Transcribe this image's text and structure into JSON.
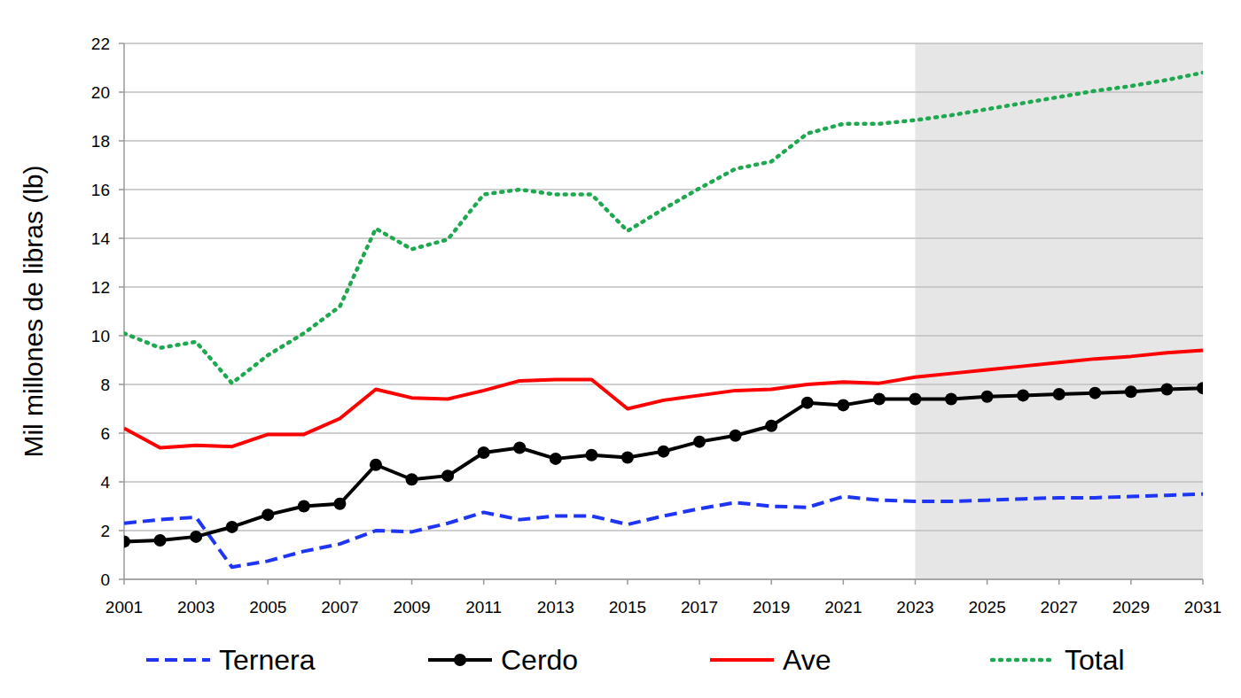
{
  "chart_data": {
    "type": "line",
    "y_label": "Mil millones de libras (lb)",
    "x": [
      2001,
      2002,
      2003,
      2004,
      2005,
      2006,
      2007,
      2008,
      2009,
      2010,
      2011,
      2012,
      2013,
      2014,
      2015,
      2016,
      2017,
      2018,
      2019,
      2020,
      2021,
      2022,
      2023,
      2024,
      2025,
      2026,
      2027,
      2028,
      2029,
      2030,
      2031
    ],
    "xlim": [
      2001,
      2031
    ],
    "xticks": [
      2001,
      2003,
      2005,
      2007,
      2009,
      2011,
      2013,
      2015,
      2017,
      2019,
      2021,
      2023,
      2025,
      2027,
      2029,
      2031
    ],
    "ylim": [
      0,
      22
    ],
    "yticks": [
      0,
      2,
      4,
      6,
      8,
      10,
      12,
      14,
      16,
      18,
      20,
      22
    ],
    "grid": true,
    "legend": "bottom",
    "shaded_region": [
      2023,
      2031
    ],
    "series": [
      {
        "name": "Ternera",
        "color": "#1f35f5",
        "line_style": "dashed",
        "marker": "none",
        "values": [
          2.3,
          2.45,
          2.55,
          0.5,
          0.75,
          1.15,
          1.45,
          2.0,
          1.95,
          2.3,
          2.75,
          2.45,
          2.6,
          2.6,
          2.25,
          2.6,
          2.9,
          3.15,
          3.0,
          2.95,
          3.4,
          3.25,
          3.2,
          3.2,
          3.25,
          3.3,
          3.35,
          3.35,
          3.4,
          3.45,
          3.5
        ]
      },
      {
        "name": "Cerdo",
        "color": "#000000",
        "line_style": "solid",
        "marker": "circle",
        "values": [
          1.55,
          1.6,
          1.75,
          2.15,
          2.65,
          3.0,
          3.1,
          4.7,
          4.1,
          4.25,
          5.2,
          5.4,
          4.95,
          5.1,
          5.0,
          5.25,
          5.65,
          5.9,
          6.3,
          7.25,
          7.15,
          7.4,
          7.4,
          7.4,
          7.5,
          7.55,
          7.6,
          7.65,
          7.7,
          7.8,
          7.85
        ]
      },
      {
        "name": "Ave",
        "color": "#ff0000",
        "line_style": "solid",
        "marker": "none",
        "values": [
          6.2,
          5.4,
          5.5,
          5.45,
          5.95,
          5.95,
          6.6,
          7.8,
          7.45,
          7.4,
          7.75,
          8.15,
          8.2,
          8.2,
          7.0,
          7.35,
          7.55,
          7.75,
          7.8,
          8.0,
          8.1,
          8.05,
          8.3,
          8.45,
          8.6,
          8.75,
          8.9,
          9.05,
          9.15,
          9.3,
          9.4
        ]
      },
      {
        "name": "Total",
        "color": "#1ea84f",
        "line_style": "dotted",
        "marker": "none",
        "values": [
          10.1,
          9.5,
          9.75,
          8.05,
          9.2,
          10.1,
          11.2,
          14.4,
          13.55,
          13.95,
          15.8,
          16.0,
          15.8,
          15.8,
          14.3,
          15.2,
          16.05,
          16.85,
          17.15,
          18.3,
          18.7,
          18.7,
          18.85,
          19.05,
          19.3,
          19.55,
          19.8,
          20.05,
          20.25,
          20.5,
          20.8
        ]
      }
    ]
  }
}
